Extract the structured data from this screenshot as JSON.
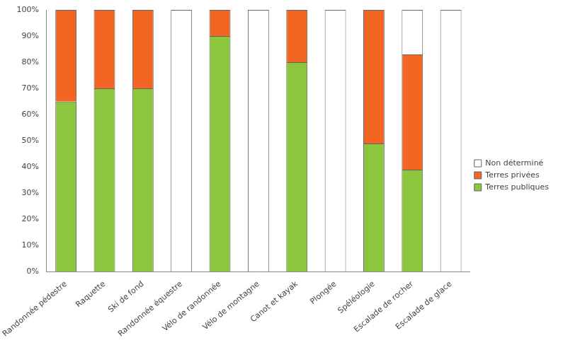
{
  "chart_data": {
    "type": "bar",
    "stacked": true,
    "categories": [
      "Randonnée pédestre",
      "Raquette",
      "Ski de fond",
      "Randonnée équestre",
      "Vélo de randonnée",
      "Vélo de montagne",
      "Canot et kayak",
      "Plongée",
      "Spéléologie",
      "Escalade de rocher",
      "Escalade de glace"
    ],
    "series": [
      {
        "name": "Terres publiques",
        "color": "#8cc63f",
        "values": [
          65,
          70,
          70,
          0,
          90,
          0,
          80,
          0,
          49,
          39,
          0
        ]
      },
      {
        "name": "Terres privées",
        "color": "#f26522",
        "values": [
          35,
          30,
          30,
          0,
          10,
          0,
          20,
          0,
          51,
          44,
          0
        ]
      },
      {
        "name": "Non déterminé",
        "color": "#ffffff",
        "values": [
          0,
          0,
          0,
          100,
          0,
          100,
          0,
          100,
          0,
          17,
          100
        ]
      }
    ],
    "ylim": [
      0,
      100
    ],
    "yticks": [
      {
        "value": 0,
        "label": "0%"
      },
      {
        "value": 10,
        "label": "10%"
      },
      {
        "value": 20,
        "label": "20%"
      },
      {
        "value": 30,
        "label": "30%"
      },
      {
        "value": 40,
        "label": "40%"
      },
      {
        "value": 50,
        "label": "50%"
      },
      {
        "value": 60,
        "label": "60%"
      },
      {
        "value": 70,
        "label": "70%"
      },
      {
        "value": 80,
        "label": "80%"
      },
      {
        "value": 90,
        "label": "90%"
      },
      {
        "value": 100,
        "label": "100%"
      }
    ],
    "grid": false,
    "legend": "right"
  }
}
